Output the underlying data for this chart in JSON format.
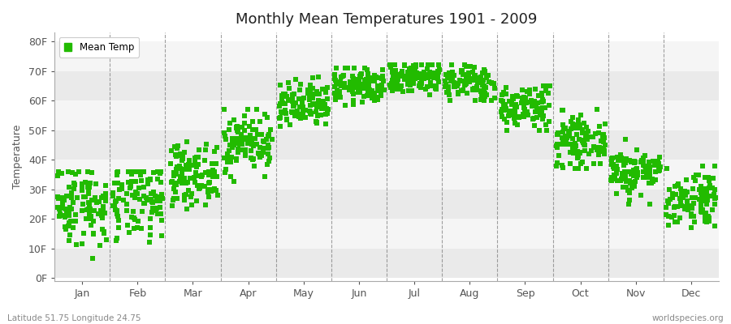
{
  "title": "Monthly Mean Temperatures 1901 - 2009",
  "ylabel": "Temperature",
  "xlabel_months": [
    "Jan",
    "Feb",
    "Mar",
    "Apr",
    "May",
    "Jun",
    "Jul",
    "Aug",
    "Sep",
    "Oct",
    "Nov",
    "Dec"
  ],
  "ytick_labels": [
    "0F",
    "10F",
    "20F",
    "30F",
    "40F",
    "50F",
    "60F",
    "70F",
    "80F"
  ],
  "ytick_values": [
    0,
    10,
    20,
    30,
    40,
    50,
    60,
    70,
    80
  ],
  "ylim": [
    -1,
    83
  ],
  "dot_color": "#22BB00",
  "background_color": "#FFFFFF",
  "band_color_dark": "#EAEAEA",
  "band_color_light": "#F5F5F5",
  "legend_label": "Mean Temp",
  "bottom_left_text": "Latitude 51.75 Longitude 24.75",
  "bottom_right_text": "worldspecies.org",
  "monthly_means": [
    25,
    26,
    35,
    46,
    58,
    65,
    68,
    66,
    58,
    46,
    36,
    27
  ],
  "monthly_stds": [
    7,
    7,
    5,
    5,
    4,
    3,
    3,
    3,
    4,
    4,
    4,
    5
  ],
  "monthly_mins": [
    5,
    5,
    20,
    32,
    47,
    58,
    61,
    60,
    50,
    37,
    25,
    17
  ],
  "monthly_maxs": [
    36,
    36,
    46,
    57,
    68,
    71,
    72,
    72,
    65,
    57,
    47,
    38
  ],
  "n_years": 109,
  "seed": 42,
  "marker_size": 14
}
